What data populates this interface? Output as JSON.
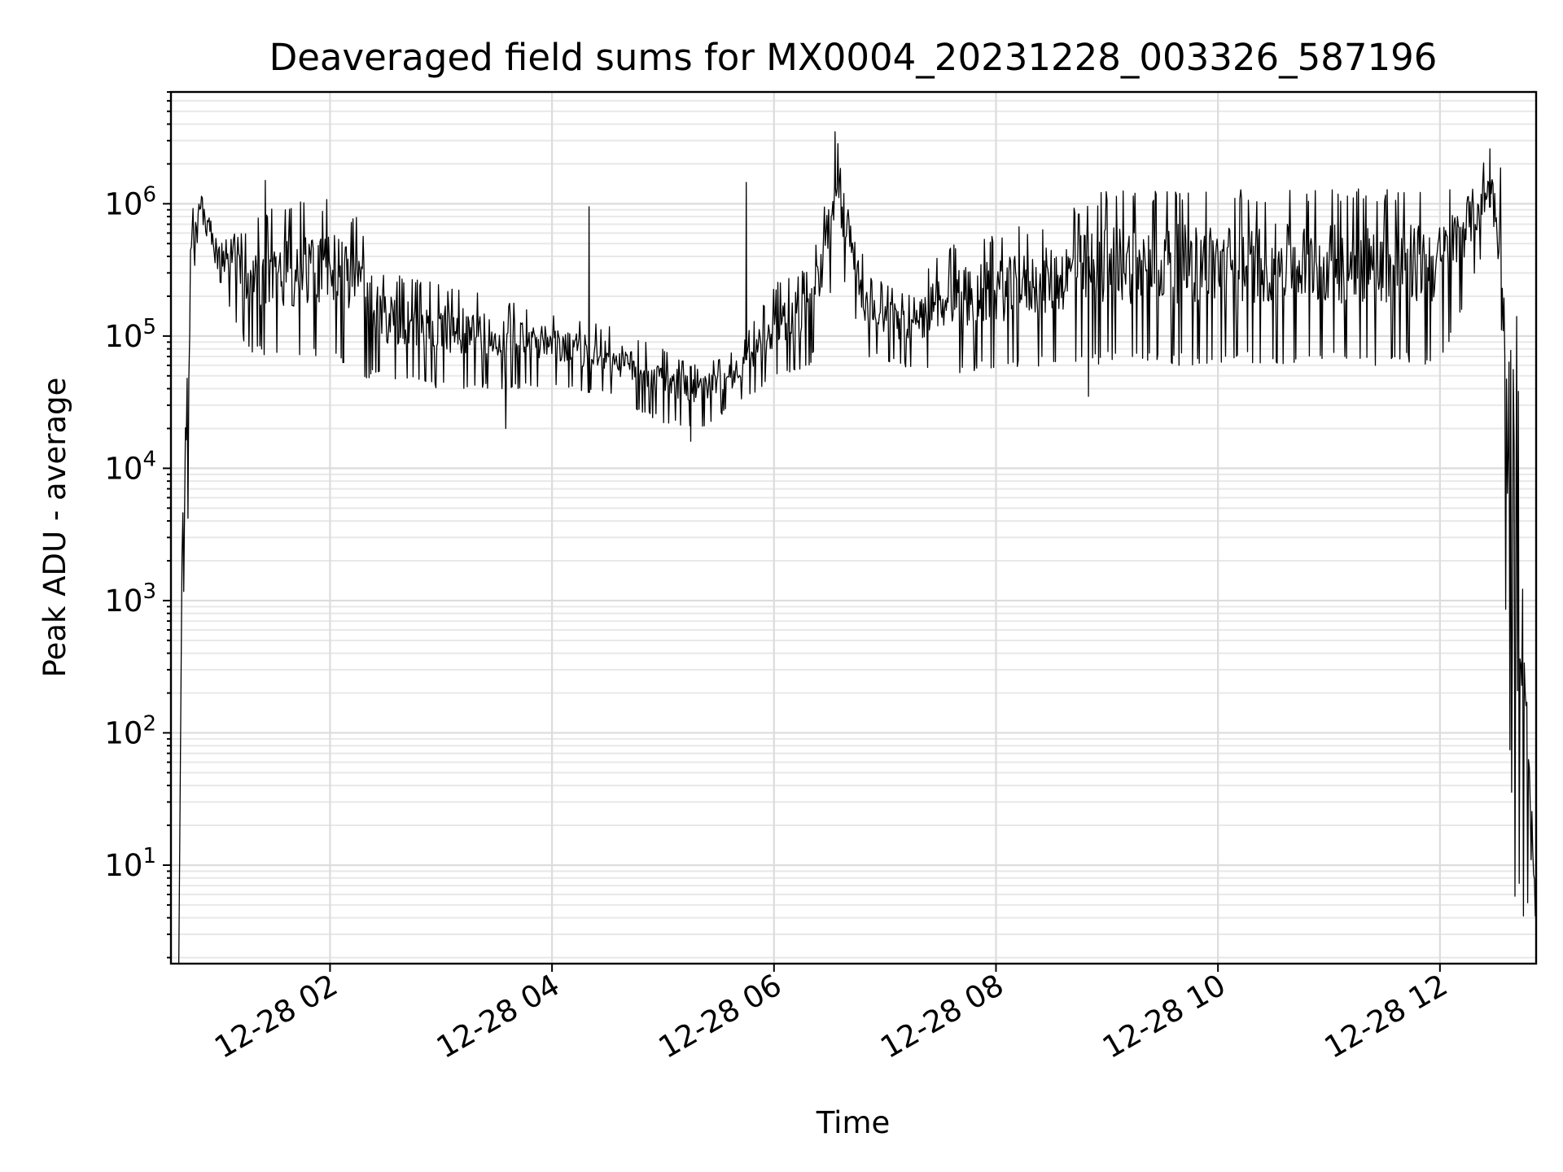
{
  "chart_data": {
    "type": "line",
    "title": "Deaveraged field sums for MX0004_20231228_003326_587196",
    "xlabel": "Time",
    "ylabel": "Peak ADU - average",
    "x_scale": "time",
    "y_scale": "log",
    "xlim": [
      "2023-12-28 00:34",
      "2023-12-28 12:52"
    ],
    "ylim": [
      1.8,
      7000000
    ],
    "grid": true,
    "legend": "none",
    "line_color": "#000000",
    "x_ticks": [
      {
        "value": "2023-12-28 02:00",
        "label": "12-28 02"
      },
      {
        "value": "2023-12-28 04:00",
        "label": "12-28 04"
      },
      {
        "value": "2023-12-28 06:00",
        "label": "12-28 06"
      },
      {
        "value": "2023-12-28 08:00",
        "label": "12-28 08"
      },
      {
        "value": "2023-12-28 10:00",
        "label": "12-28 10"
      },
      {
        "value": "2023-12-28 12:00",
        "label": "12-28 12"
      }
    ],
    "y_ticks": [
      {
        "value": 10,
        "base": "10",
        "exp": "1"
      },
      {
        "value": 100,
        "base": "10",
        "exp": "2"
      },
      {
        "value": 1000,
        "base": "10",
        "exp": "3"
      },
      {
        "value": 10000,
        "base": "10",
        "exp": "4"
      },
      {
        "value": 100000,
        "base": "10",
        "exp": "5"
      },
      {
        "value": 1000000,
        "base": "10",
        "exp": "6"
      }
    ],
    "series": [
      {
        "envelope_unit": "ADU",
        "envelope": [
          {
            "t": "2023-12-28 00:40",
            "low": 3.8,
            "high": 120000
          },
          {
            "t": "2023-12-28 00:45",
            "low": 200000,
            "high": 900000
          },
          {
            "t": "2023-12-28 00:50",
            "low": 800000,
            "high": 1250000
          },
          {
            "t": "2023-12-28 01:00",
            "low": 250000,
            "high": 500000
          },
          {
            "t": "2023-12-28 01:15",
            "low": 80000,
            "high": 700000
          },
          {
            "t": "2023-12-28 01:30",
            "low": 60000,
            "high": 1000000
          },
          {
            "t": "2023-12-28 02:00",
            "low": 70000,
            "high": 1100000
          },
          {
            "t": "2023-12-28 02:15",
            "low": 50000,
            "high": 800000
          },
          {
            "t": "2023-12-28 02:30",
            "low": 45000,
            "high": 300000
          },
          {
            "t": "2023-12-28 03:00",
            "low": 40000,
            "high": 250000
          },
          {
            "t": "2023-12-28 03:30",
            "low": 40000,
            "high": 200000
          },
          {
            "t": "2023-12-28 04:00",
            "low": 40000,
            "high": 150000
          },
          {
            "t": "2023-12-28 04:30",
            "low": 35000,
            "high": 120000
          },
          {
            "t": "2023-12-28 05:00",
            "low": 22000,
            "high": 80000
          },
          {
            "t": "2023-12-28 05:20",
            "low": 20000,
            "high": 60000
          },
          {
            "t": "2023-12-28 05:40",
            "low": 30000,
            "high": 80000
          },
          {
            "t": "2023-12-28 06:00",
            "low": 45000,
            "high": 250000
          },
          {
            "t": "2023-12-28 06:20",
            "low": 60000,
            "high": 350000
          },
          {
            "t": "2023-12-28 06:35",
            "low": 300000,
            "high": 3500000
          },
          {
            "t": "2023-12-28 06:50",
            "low": 70000,
            "high": 300000
          },
          {
            "t": "2023-12-28 07:15",
            "low": 55000,
            "high": 200000
          },
          {
            "t": "2023-12-28 07:30",
            "low": 50000,
            "high": 500000
          },
          {
            "t": "2023-12-28 08:00",
            "low": 55000,
            "high": 600000
          },
          {
            "t": "2023-12-28 08:30",
            "low": 60000,
            "high": 800000
          },
          {
            "t": "2023-12-28 09:00",
            "low": 60000,
            "high": 1300000
          },
          {
            "t": "2023-12-28 10:00",
            "low": 60000,
            "high": 1300000
          },
          {
            "t": "2023-12-28 11:00",
            "low": 60000,
            "high": 1300000
          },
          {
            "t": "2023-12-28 12:00",
            "low": 60000,
            "high": 1300000
          },
          {
            "t": "2023-12-28 12:30",
            "low": 700000,
            "high": 2600000
          },
          {
            "t": "2023-12-28 12:40",
            "low": 3.8,
            "high": 800000
          },
          {
            "t": "2023-12-28 12:52",
            "low": 3.8,
            "high": 4.5
          }
        ],
        "notable_spikes": [
          {
            "t": "2023-12-28 01:25",
            "value": 1500000
          },
          {
            "t": "2023-12-28 04:20",
            "value": 950000
          },
          {
            "t": "2023-12-28 05:45",
            "value": 1450000
          },
          {
            "t": "2023-12-28 06:33",
            "value": 3500000
          },
          {
            "t": "2023-12-28 12:27",
            "value": 2600000
          }
        ],
        "notable_dips": [
          {
            "t": "2023-12-28 03:35",
            "value": 20000
          },
          {
            "t": "2023-12-28 05:15",
            "value": 16000
          },
          {
            "t": "2023-12-28 08:50",
            "value": 35000
          }
        ]
      }
    ]
  }
}
